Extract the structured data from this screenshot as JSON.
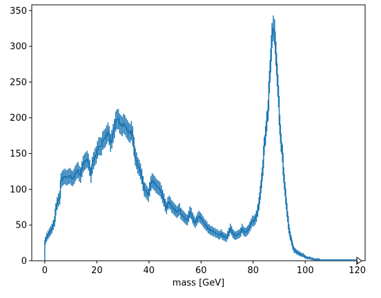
{
  "chart_data": {
    "type": "histogram",
    "xlabel": "mass [GeV]",
    "ylabel": "",
    "xlim": [
      -5,
      123
    ],
    "ylim": [
      0,
      358
    ],
    "xticks": [
      "0",
      "20",
      "40",
      "60",
      "80",
      "100",
      "120"
    ],
    "yticks": [
      "0",
      "50",
      "100",
      "150",
      "200",
      "250",
      "300",
      "350"
    ],
    "color": "#1f77b4",
    "overflow_marker": "triangle-right",
    "bin_width": 0.5,
    "bins_start": 0,
    "values": [
      28,
      33,
      36,
      39,
      42,
      45,
      50,
      55,
      72,
      80,
      85,
      88,
      112,
      115,
      117,
      118,
      116,
      117,
      118,
      119,
      116,
      115,
      118,
      122,
      125,
      127,
      122,
      120,
      128,
      135,
      138,
      140,
      142,
      138,
      130,
      120,
      134,
      140,
      145,
      148,
      155,
      160,
      160,
      160,
      168,
      170,
      172,
      176,
      180,
      175,
      165,
      170,
      178,
      185,
      195,
      198,
      198,
      192,
      190,
      188,
      192,
      190,
      186,
      183,
      180,
      178,
      182,
      175,
      160,
      145,
      140,
      133,
      130,
      125,
      118,
      108,
      100,
      98,
      95,
      92,
      100,
      108,
      112,
      110,
      108,
      105,
      103,
      102,
      100,
      96,
      90,
      85,
      78,
      74,
      80,
      82,
      80,
      76,
      74,
      72,
      70,
      68,
      70,
      72,
      66,
      64,
      62,
      60,
      58,
      57,
      62,
      68,
      66,
      60,
      56,
      53,
      56,
      60,
      62,
      60,
      58,
      55,
      52,
      50,
      48,
      45,
      44,
      42,
      42,
      40,
      40,
      38,
      38,
      36,
      36,
      38,
      35,
      34,
      33,
      32,
      36,
      40,
      45,
      42,
      38,
      36,
      35,
      36,
      37,
      38,
      40,
      45,
      42,
      40,
      40,
      42,
      44,
      48,
      52,
      56,
      55,
      58,
      62,
      70,
      80,
      95,
      112,
      130,
      160,
      175,
      195,
      210,
      250,
      280,
      315,
      325,
      320,
      290,
      260,
      230,
      190,
      165,
      150,
      120,
      100,
      80,
      62,
      45,
      35,
      28,
      20,
      15,
      14,
      12,
      11,
      10,
      9,
      8,
      8,
      6,
      5,
      4,
      4,
      4,
      3,
      3,
      2,
      2,
      2,
      2,
      2,
      1,
      1,
      1,
      1,
      1,
      1,
      1,
      1,
      1,
      1,
      1,
      1,
      1,
      1,
      1,
      1,
      1,
      1,
      1,
      1,
      1,
      1,
      1,
      1,
      1,
      1,
      1,
      1,
      1,
      1
    ]
  }
}
